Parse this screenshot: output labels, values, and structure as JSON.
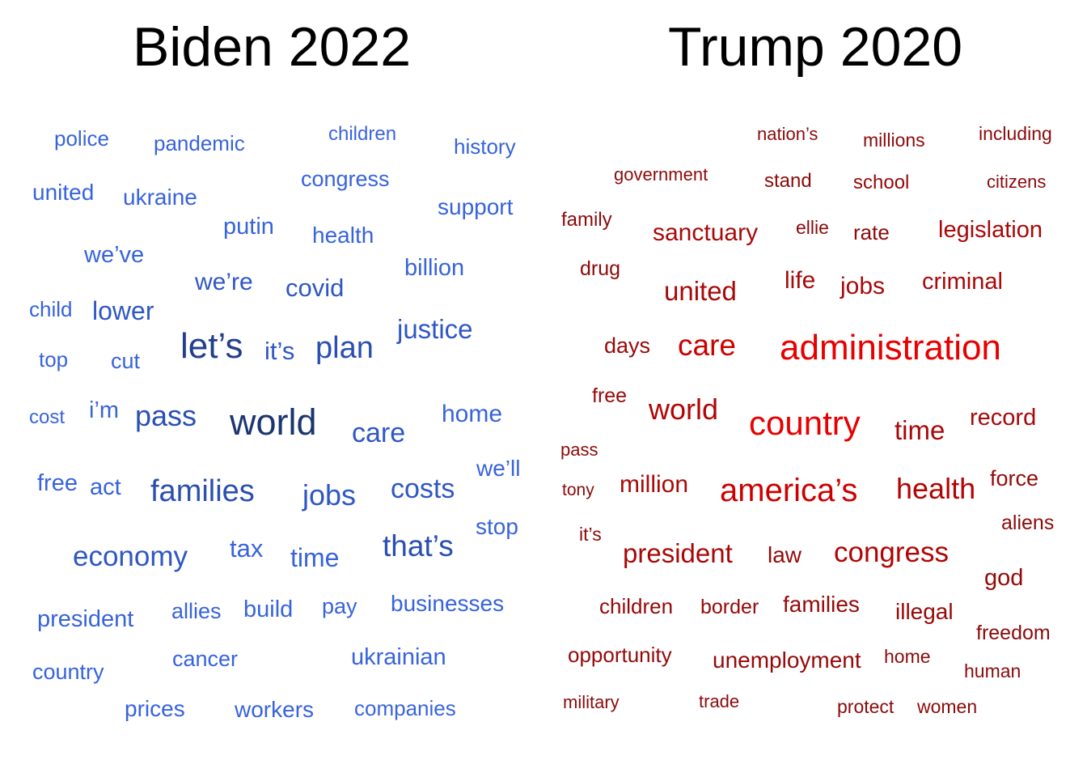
{
  "left": {
    "title": "Biden 2022",
    "words": [
      {
        "text": "police",
        "level": 1
      },
      {
        "text": "pandemic",
        "level": 1
      },
      {
        "text": "children",
        "level": 0
      },
      {
        "text": "history",
        "level": 1
      },
      {
        "text": "united",
        "level": 1
      },
      {
        "text": "ukraine",
        "level": 1
      },
      {
        "text": "congress",
        "level": 1
      },
      {
        "text": "support",
        "level": 1
      },
      {
        "text": "putin",
        "level": 1
      },
      {
        "text": "health",
        "level": 1
      },
      {
        "text": "we’ve",
        "level": 1
      },
      {
        "text": "billion",
        "level": 1
      },
      {
        "text": "we’re",
        "level": 2
      },
      {
        "text": "covid",
        "level": 2
      },
      {
        "text": "child",
        "level": 1
      },
      {
        "text": "lower",
        "level": 2
      },
      {
        "text": "justice",
        "level": 2
      },
      {
        "text": "top",
        "level": 1
      },
      {
        "text": "cut",
        "level": 1
      },
      {
        "text": "let’s",
        "level": 4
      },
      {
        "text": "it’s",
        "level": 2
      },
      {
        "text": "plan",
        "level": 3
      },
      {
        "text": "cost",
        "level": 0
      },
      {
        "text": "i’m",
        "level": 1
      },
      {
        "text": "pass",
        "level": 3
      },
      {
        "text": "world",
        "level": 5
      },
      {
        "text": "care",
        "level": 2
      },
      {
        "text": "home",
        "level": 1
      },
      {
        "text": "we’ll",
        "level": 1
      },
      {
        "text": "free",
        "level": 1
      },
      {
        "text": "act",
        "level": 1
      },
      {
        "text": "families",
        "level": 3
      },
      {
        "text": "jobs",
        "level": 2
      },
      {
        "text": "costs",
        "level": 2
      },
      {
        "text": "stop",
        "level": 1
      },
      {
        "text": "economy",
        "level": 2
      },
      {
        "text": "tax",
        "level": 1
      },
      {
        "text": "time",
        "level": 1
      },
      {
        "text": "that’s",
        "level": 3
      },
      {
        "text": "president",
        "level": 1
      },
      {
        "text": "allies",
        "level": 1
      },
      {
        "text": "build",
        "level": 1
      },
      {
        "text": "pay",
        "level": 1
      },
      {
        "text": "businesses",
        "level": 1
      },
      {
        "text": "country",
        "level": 1
      },
      {
        "text": "cancer",
        "level": 1
      },
      {
        "text": "ukrainian",
        "level": 1
      },
      {
        "text": "prices",
        "level": 1
      },
      {
        "text": "workers",
        "level": 1
      },
      {
        "text": "companies",
        "level": 0
      }
    ]
  },
  "right": {
    "title": "Trump 2020",
    "words": [
      {
        "text": "nation’s",
        "level": 0
      },
      {
        "text": "millions",
        "level": 0
      },
      {
        "text": "including",
        "level": 0
      },
      {
        "text": "government",
        "level": 0
      },
      {
        "text": "stand",
        "level": 0
      },
      {
        "text": "school",
        "level": 1
      },
      {
        "text": "citizens",
        "level": 0
      },
      {
        "text": "family",
        "level": 0
      },
      {
        "text": "sanctuary",
        "level": 2
      },
      {
        "text": "ellie",
        "level": 0
      },
      {
        "text": "rate",
        "level": 0
      },
      {
        "text": "legislation",
        "level": 2
      },
      {
        "text": "drug",
        "level": 0
      },
      {
        "text": "united",
        "level": 2
      },
      {
        "text": "life",
        "level": 2
      },
      {
        "text": "jobs",
        "level": 2
      },
      {
        "text": "criminal",
        "level": 2
      },
      {
        "text": "days",
        "level": 1
      },
      {
        "text": "care",
        "level": 4
      },
      {
        "text": "administration",
        "level": 5
      },
      {
        "text": "free",
        "level": 1
      },
      {
        "text": "world",
        "level": 3
      },
      {
        "text": "country",
        "level": 5
      },
      {
        "text": "time",
        "level": 2
      },
      {
        "text": "record",
        "level": 2
      },
      {
        "text": "pass",
        "level": 0
      },
      {
        "text": "tony",
        "level": 0
      },
      {
        "text": "million",
        "level": 2
      },
      {
        "text": "america’s",
        "level": 4
      },
      {
        "text": "health",
        "level": 3
      },
      {
        "text": "force",
        "level": 1
      },
      {
        "text": "aliens",
        "level": 0
      },
      {
        "text": "it’s",
        "level": 0
      },
      {
        "text": "president",
        "level": 2
      },
      {
        "text": "law",
        "level": 1
      },
      {
        "text": "congress",
        "level": 3
      },
      {
        "text": "god",
        "level": 1
      },
      {
        "text": "children",
        "level": 1
      },
      {
        "text": "border",
        "level": 1
      },
      {
        "text": "families",
        "level": 1
      },
      {
        "text": "illegal",
        "level": 1
      },
      {
        "text": "freedom",
        "level": 0
      },
      {
        "text": "opportunity",
        "level": 1
      },
      {
        "text": "unemployment",
        "level": 1
      },
      {
        "text": "home",
        "level": 0
      },
      {
        "text": "human",
        "level": 0
      },
      {
        "text": "military",
        "level": 0
      },
      {
        "text": "trade",
        "level": 0
      },
      {
        "text": "protect",
        "level": 0
      },
      {
        "text": "women",
        "level": 0
      }
    ]
  },
  "colors": {
    "biden_levels": [
      "#3a64dd",
      "#3763dc",
      "#2f57c4",
      "#2a4fb0",
      "#223f8c",
      "#1b356f"
    ],
    "trump_levels": [
      "#8b0a0a",
      "#960808",
      "#a80808",
      "#b20404",
      "#cc0000",
      "#e80000"
    ]
  }
}
